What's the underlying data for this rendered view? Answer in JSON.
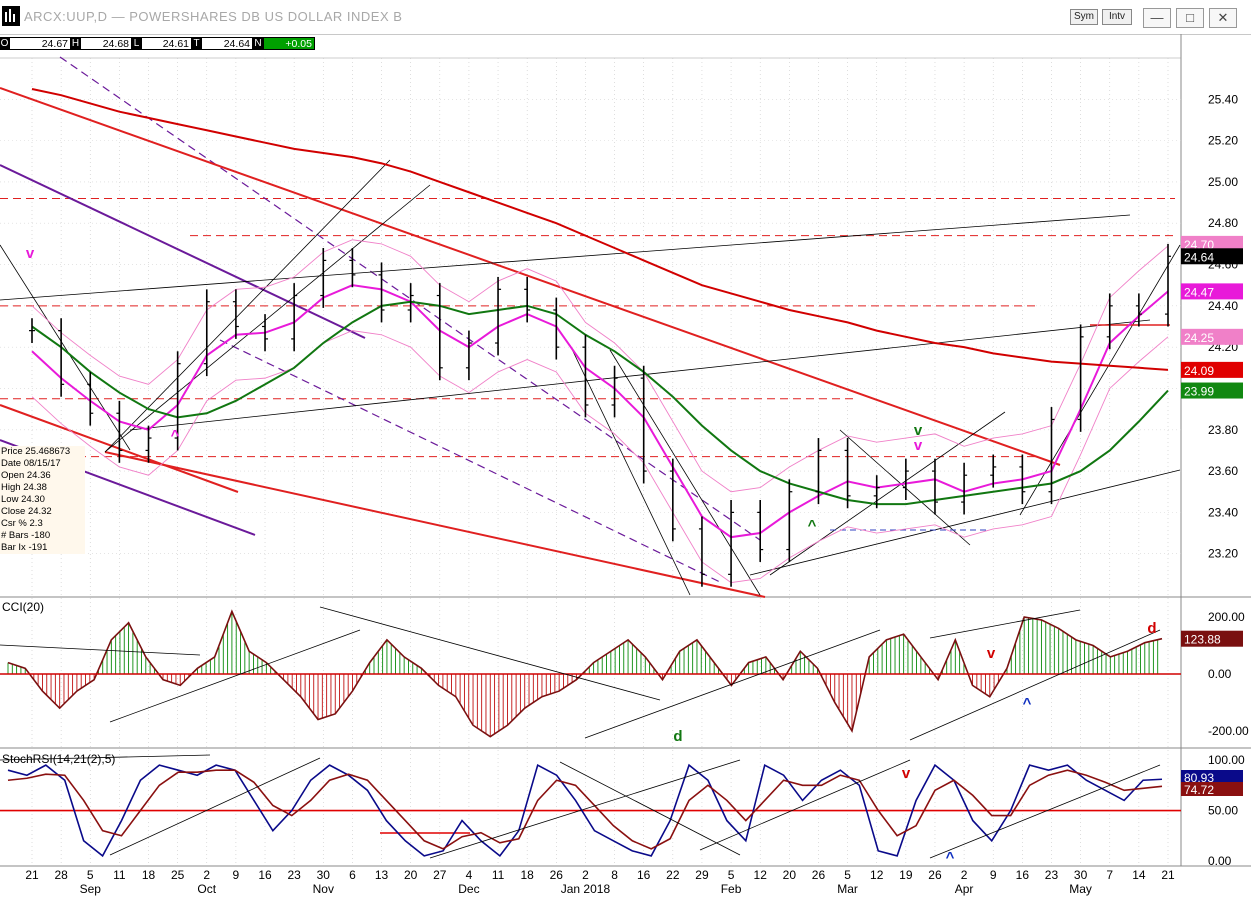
{
  "window": {
    "title": "ARCX:UUP,D — POWERSHARES DB US DOLLAR INDEX B",
    "buttons": {
      "sym": "Sym",
      "int": "Intv",
      "minimize": "—",
      "restore": "□",
      "close": "✕"
    }
  },
  "ohlc_bar": [
    {
      "key": "O",
      "value": "24.67"
    },
    {
      "key": "H",
      "value": "24.68"
    },
    {
      "key": "L",
      "value": "24.61"
    },
    {
      "key": "T",
      "value": "24.64"
    },
    {
      "key": "N",
      "value": "+0.05"
    }
  ],
  "info_box": [
    {
      "label": "Price",
      "value": "25.468673"
    },
    {
      "label": "Date",
      "value": "08/15/17"
    },
    {
      "label": "Open",
      "value": "24.36"
    },
    {
      "label": "High",
      "value": "24.38"
    },
    {
      "label": "Low",
      "value": "24.30"
    },
    {
      "label": "Close",
      "value": "24.32"
    },
    {
      "label": "Csr %",
      "value": "2.3"
    },
    {
      "label": "# Bars",
      "value": "-180"
    },
    {
      "label": "Bar Ix",
      "value": "-191"
    }
  ],
  "colors": {
    "price_bar": "#000000",
    "ma_short": "#e81ad9",
    "ma_mid": "#117711",
    "ma_long": "#d10000",
    "bollinger": "#f080c8",
    "channel_purple": "#6b1a9a",
    "trend_red": "#e02020",
    "cci_pos": "#0a8a0a",
    "cci_neg": "#c01010",
    "cci_line": "#7a1010",
    "stoch_blue": "#0a0a8a",
    "stoch_red": "#8a1010"
  },
  "chart_data": [
    {
      "panel": "price",
      "type": "line",
      "x": [
        "Aug 21",
        "Aug 28",
        "Sep 5",
        "Sep 11",
        "Sep 18",
        "Sep 25",
        "Oct 2",
        "Oct 9",
        "Oct 16",
        "Oct 23",
        "Oct 30",
        "Nov 6",
        "Nov 13",
        "Nov 20",
        "Nov 27",
        "Dec 4",
        "Dec 11",
        "Dec 18",
        "Dec 26",
        "Jan 2",
        "Jan 8",
        "Jan 16",
        "Jan 22",
        "Jan 29",
        "Feb 5",
        "Feb 12",
        "Feb 20",
        "Feb 26",
        "Mar 5",
        "Mar 12",
        "Mar 19",
        "Mar 26",
        "Apr 2",
        "Apr 9",
        "Apr 16",
        "Apr 23",
        "Apr 30",
        "May 7",
        "May 14",
        "May 21"
      ],
      "series": [
        {
          "name": "",
          "role": "weekly-close",
          "values": [
            24.28,
            24.02,
            23.88,
            23.7,
            23.76,
            24.12,
            24.42,
            24.3,
            24.24,
            24.45,
            24.62,
            24.55,
            24.38,
            24.45,
            24.1,
            24.22,
            24.48,
            24.38,
            24.2,
            23.92,
            24.05,
            23.6,
            23.32,
            23.1,
            23.4,
            23.22,
            23.5,
            23.7,
            23.48,
            23.52,
            23.6,
            23.45,
            23.58,
            23.62,
            23.5,
            23.85,
            24.25,
            24.4,
            24.36,
            24.64
          ]
        },
        {
          "name": "",
          "role": "ma-short",
          "values": [
            24.18,
            24.05,
            23.94,
            23.84,
            23.8,
            23.92,
            24.16,
            24.26,
            24.27,
            24.32,
            24.44,
            24.5,
            24.48,
            24.42,
            24.28,
            24.2,
            24.3,
            24.36,
            24.3,
            24.1,
            24.0,
            23.86,
            23.62,
            23.38,
            23.28,
            23.3,
            23.4,
            23.48,
            23.55,
            23.52,
            23.54,
            23.56,
            23.5,
            23.54,
            23.56,
            23.6,
            23.9,
            24.22,
            24.35,
            24.47
          ]
        },
        {
          "name": "",
          "role": "ma-mid",
          "values": [
            24.3,
            24.2,
            24.08,
            23.98,
            23.9,
            23.86,
            23.88,
            23.94,
            24.02,
            24.1,
            24.22,
            24.32,
            24.4,
            24.42,
            24.4,
            24.36,
            24.38,
            24.4,
            24.36,
            24.26,
            24.18,
            24.08,
            23.96,
            23.82,
            23.7,
            23.6,
            23.54,
            23.5,
            23.46,
            23.44,
            23.44,
            23.46,
            23.48,
            23.5,
            23.52,
            23.54,
            23.6,
            23.7,
            23.84,
            23.99
          ]
        },
        {
          "name": "",
          "role": "ma-long",
          "values": [
            25.45,
            25.42,
            25.38,
            25.34,
            25.31,
            25.28,
            25.25,
            25.22,
            25.19,
            25.16,
            25.14,
            25.12,
            25.09,
            25.05,
            25.0,
            24.95,
            24.9,
            24.85,
            24.8,
            24.74,
            24.68,
            24.62,
            24.56,
            24.5,
            24.46,
            24.42,
            24.38,
            24.35,
            24.32,
            24.28,
            24.25,
            24.22,
            24.2,
            24.17,
            24.15,
            24.13,
            24.12,
            24.11,
            24.1,
            24.09
          ]
        }
      ],
      "marker_labels": [
        {
          "x": "Aug 21",
          "text": "v",
          "color": "#e81ad9"
        },
        {
          "x": "Sep 25",
          "text": "^",
          "color": "#e81ad9"
        },
        {
          "x": "Mar 19",
          "text": "v",
          "color": "#117711"
        },
        {
          "x": "Mar 19",
          "text": "v",
          "color": "#e81ad9"
        },
        {
          "x": "Feb 26",
          "text": "^",
          "color": "#117711"
        }
      ],
      "y_ticks": [
        "25.40",
        "25.20",
        "25.00",
        "24.80",
        "24.60",
        "24.40",
        "24.20",
        "24.00",
        "23.80",
        "23.60",
        "23.40",
        "23.20"
      ],
      "ylim": [
        23.0,
        25.6
      ],
      "value_tags": [
        {
          "text": "24.70",
          "color": "#f080c8",
          "text_color": "#ffffff",
          "y": 24.7
        },
        {
          "text": "24.64",
          "color": "#000000",
          "text_color": "#ffffff",
          "y": 24.64
        },
        {
          "text": "24.47",
          "color": "#e81ad9",
          "text_color": "#ffffff",
          "y": 24.47
        },
        {
          "text": "24.25",
          "color": "#f080c8",
          "text_color": "#ffffff",
          "y": 24.25
        },
        {
          "text": "24.09",
          "color": "#e00000",
          "text_color": "#ffffff",
          "y": 24.09
        },
        {
          "text": "23.99",
          "color": "#118811",
          "text_color": "#ffffff",
          "y": 23.99
        }
      ],
      "horizontal_levels": [
        24.92,
        24.74,
        24.4,
        23.95,
        23.67
      ]
    },
    {
      "panel": "cci",
      "type": "bar",
      "title": "CCI(20)",
      "y_ticks": [
        "200.00",
        "0.00",
        "-200.00"
      ],
      "ylim": [
        -260,
        260
      ],
      "values": [
        40,
        20,
        -60,
        -120,
        -60,
        -20,
        120,
        180,
        60,
        -20,
        -40,
        20,
        60,
        220,
        80,
        40,
        -20,
        -80,
        -160,
        -140,
        -60,
        40,
        120,
        60,
        20,
        -40,
        -80,
        -180,
        -220,
        -180,
        -120,
        -80,
        -60,
        -20,
        40,
        80,
        120,
        60,
        -20,
        80,
        120,
        40,
        -40,
        40,
        60,
        -20,
        80,
        20,
        -100,
        -200,
        60,
        120,
        140,
        60,
        -20,
        120,
        -40,
        -80,
        20,
        200,
        190,
        160,
        120,
        100,
        60,
        80,
        110,
        124
      ],
      "value_tag": {
        "text": "123.88",
        "color": "#7a1010"
      },
      "marker_labels": [
        {
          "text": "d",
          "color": "#117711"
        },
        {
          "text": "v",
          "color": "#d10000"
        },
        {
          "text": "^",
          "color": "#1030c0"
        },
        {
          "text": "d",
          "color": "#d10000"
        }
      ]
    },
    {
      "panel": "stochrsi",
      "type": "line",
      "title": "StochRSI(14,21(2),5)",
      "y_ticks": [
        "100.00",
        "50.00",
        "0.00"
      ],
      "ylim": [
        -5,
        110
      ],
      "series": [
        {
          "name": "",
          "color": "#0a0a8a",
          "values": [
            90,
            85,
            95,
            80,
            20,
            5,
            40,
            80,
            95,
            90,
            85,
            95,
            90,
            60,
            30,
            50,
            80,
            95,
            85,
            70,
            40,
            20,
            5,
            10,
            40,
            20,
            5,
            30,
            95,
            85,
            60,
            30,
            20,
            10,
            5,
            40,
            95,
            80,
            40,
            20,
            95,
            85,
            60,
            80,
            90,
            75,
            10,
            5,
            60,
            95,
            80,
            40,
            20,
            50,
            95,
            90,
            95,
            80,
            70,
            60,
            80,
            81
          ]
        },
        {
          "name": "",
          "color": "#8a1010",
          "values": [
            80,
            82,
            86,
            85,
            60,
            30,
            25,
            50,
            75,
            88,
            88,
            90,
            90,
            78,
            55,
            45,
            60,
            80,
            86,
            80,
            60,
            40,
            20,
            12,
            24,
            28,
            18,
            22,
            60,
            80,
            75,
            55,
            35,
            20,
            12,
            22,
            60,
            75,
            60,
            40,
            60,
            80,
            75,
            75,
            85,
            80,
            50,
            25,
            35,
            70,
            80,
            65,
            45,
            45,
            75,
            85,
            90,
            85,
            78,
            70,
            72,
            74
          ]
        }
      ],
      "value_tags": [
        {
          "text": "80.93",
          "color": "#0a0a8a"
        },
        {
          "text": "74.72",
          "color": "#8a1010"
        }
      ],
      "marker_labels": [
        {
          "text": "v",
          "color": "#d10000"
        },
        {
          "text": "^",
          "color": "#1030c0"
        }
      ]
    }
  ],
  "x_axis": {
    "day_labels": [
      "21",
      "28",
      "5",
      "11",
      "18",
      "25",
      "2",
      "9",
      "16",
      "23",
      "30",
      "6",
      "13",
      "20",
      "27",
      "4",
      "11",
      "18",
      "26",
      "2",
      "8",
      "16",
      "22",
      "29",
      "5",
      "12",
      "20",
      "26",
      "5",
      "12",
      "19",
      "26",
      "2",
      "9",
      "16",
      "23",
      "30",
      "7",
      "14",
      "21"
    ],
    "month_labels": [
      "Sep",
      "Oct",
      "Nov",
      "Dec",
      "Jan 2018",
      "Feb",
      "Mar",
      "Apr",
      "May"
    ]
  }
}
